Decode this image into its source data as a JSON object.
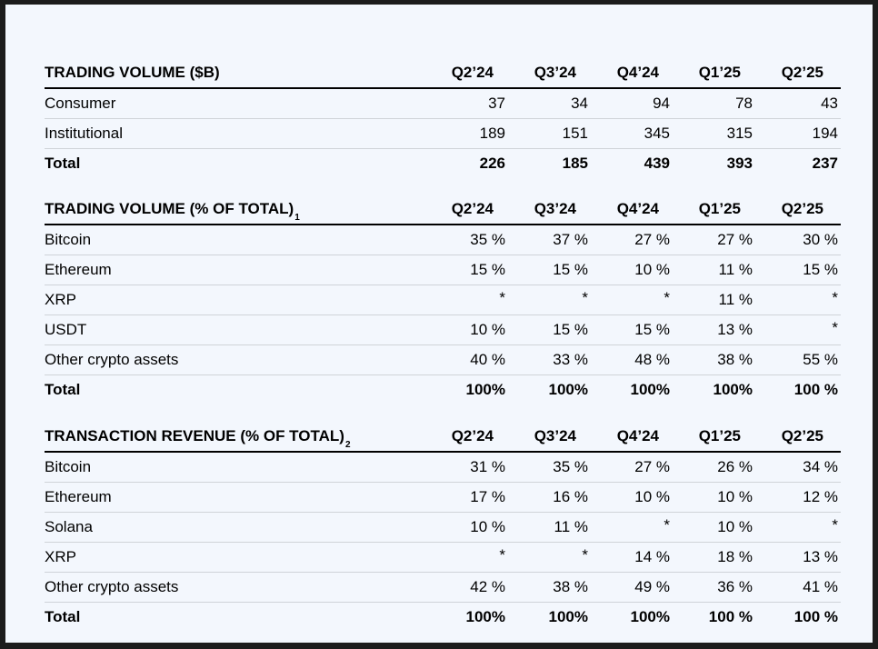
{
  "tables": [
    {
      "title": "TRADING VOLUME ($B)",
      "footnote": "",
      "columns": [
        "Q2’24",
        "Q3’24",
        "Q4’24",
        "Q1’25",
        "Q2’25"
      ],
      "rows": [
        {
          "label": "Consumer",
          "values": [
            "37",
            "34",
            "94",
            "78",
            "43"
          ]
        },
        {
          "label": "Institutional",
          "values": [
            "189",
            "151",
            "345",
            "315",
            "194"
          ]
        }
      ],
      "total": {
        "label": "Total",
        "values": [
          "226",
          "185",
          "439",
          "393",
          "237"
        ]
      }
    },
    {
      "title": "TRADING VOLUME (% OF TOTAL)",
      "footnote": "1",
      "columns": [
        "Q2’24",
        "Q3’24",
        "Q4’24",
        "Q1’25",
        "Q2’25"
      ],
      "rows": [
        {
          "label": "Bitcoin",
          "values": [
            "35 %",
            "37 %",
            "27 %",
            "27 %",
            "30 %"
          ]
        },
        {
          "label": "Ethereum",
          "values": [
            "15 %",
            "15 %",
            "10 %",
            "11 %",
            "15 %"
          ]
        },
        {
          "label": "XRP",
          "values": [
            "*",
            "*",
            "*",
            "11 %",
            "*"
          ]
        },
        {
          "label": "USDT",
          "values": [
            "10 %",
            "15 %",
            "15 %",
            "13 %",
            "*"
          ]
        },
        {
          "label": "Other crypto assets",
          "values": [
            "40 %",
            "33 %",
            "48 %",
            "38 %",
            "55 %"
          ]
        }
      ],
      "total": {
        "label": "Total",
        "values": [
          "100%",
          "100%",
          "100%",
          "100%",
          "100 %"
        ]
      }
    },
    {
      "title": "TRANSACTION REVENUE (% OF TOTAL)",
      "footnote": "2",
      "columns": [
        "Q2’24",
        "Q3’24",
        "Q4’24",
        "Q1’25",
        "Q2’25"
      ],
      "rows": [
        {
          "label": "Bitcoin",
          "values": [
            "31 %",
            "35 %",
            "27 %",
            "26 %",
            "34 %"
          ]
        },
        {
          "label": "Ethereum",
          "values": [
            "17 %",
            "16 %",
            "10 %",
            "10 %",
            "12 %"
          ]
        },
        {
          "label": "Solana",
          "values": [
            "10 %",
            "11 %",
            "*",
            "10 %",
            "*"
          ]
        },
        {
          "label": "XRP",
          "values": [
            "*",
            "*",
            "14 %",
            "18 %",
            "13 %"
          ]
        },
        {
          "label": "Other crypto assets",
          "values": [
            "42 %",
            "38 %",
            "49 %",
            "36 %",
            "41 %"
          ]
        }
      ],
      "total": {
        "label": "Total",
        "values": [
          "100%",
          "100%",
          "100%",
          "100 %",
          "100 %"
        ]
      }
    }
  ]
}
